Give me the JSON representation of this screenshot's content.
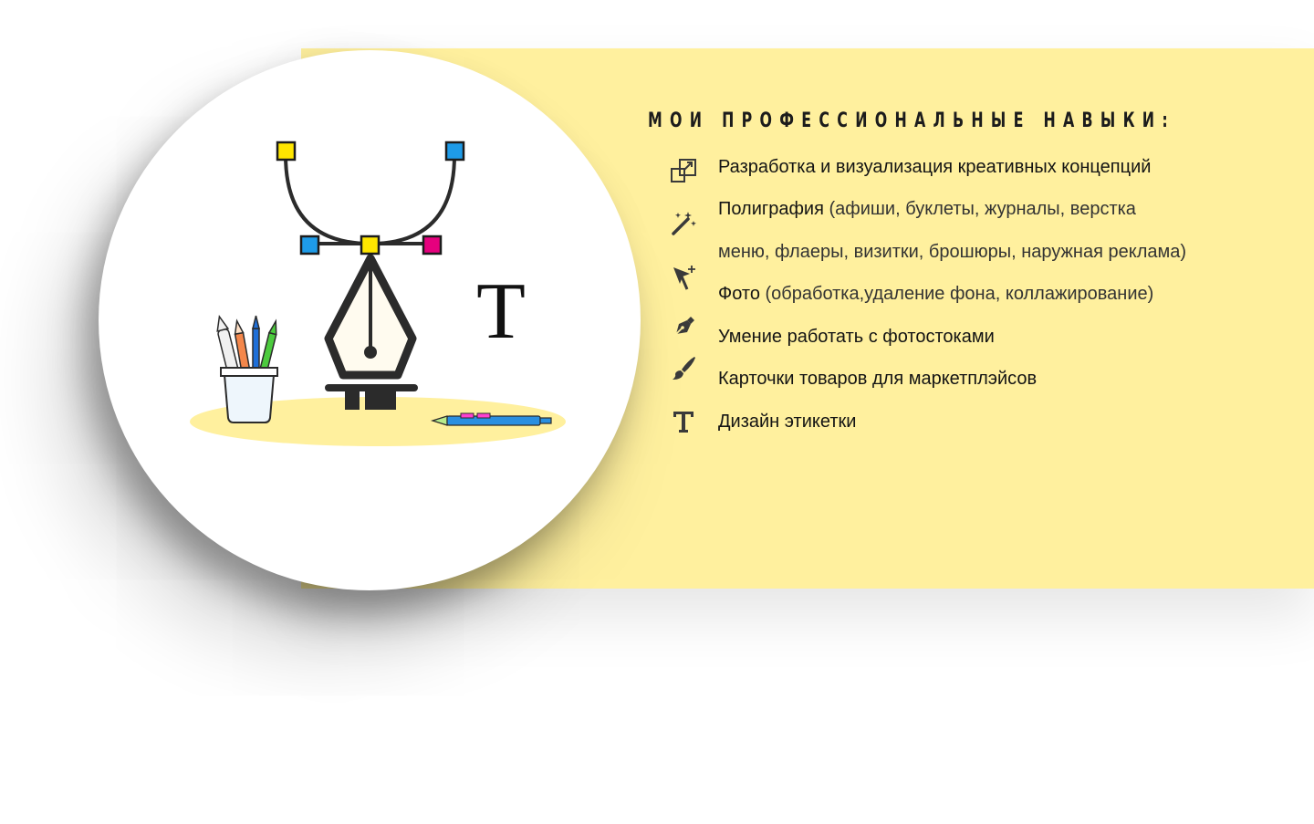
{
  "heading": "МОИ ПРОФЕССИОНАЛЬНЫЕ НАВЫКИ:",
  "illustration": {
    "letter": "T"
  },
  "colors": {
    "band": "#fff09e",
    "yellow_handle": "#ffe600",
    "blue_handle": "#1e9be8",
    "magenta_handle": "#e6007e",
    "text": "#1a1a1a"
  },
  "skills": [
    {
      "icon": "resize-frames-icon",
      "main": "Разработка и визуализация креативных концепций",
      "extra": ""
    },
    {
      "icon": "magic-wand-icon",
      "main": "Полиграфия",
      "extra": " (афиши, буклеты, журналы, верстка",
      "extra2": "меню, флаеры, визитки, брошюры, наружная реклама)"
    },
    {
      "icon": "cursor-plus-icon",
      "main": "Фото",
      "extra": " (обработка,удаление фона, коллажирование)"
    },
    {
      "icon": "pen-nib-icon",
      "main": "Умение работать с фотостоками",
      "extra": ""
    },
    {
      "icon": "brush-icon",
      "main": "Карточки товаров для маркетплэйсов",
      "extra": ""
    },
    {
      "icon": "type-icon",
      "main": "Дизайн этикетки",
      "extra": ""
    }
  ]
}
